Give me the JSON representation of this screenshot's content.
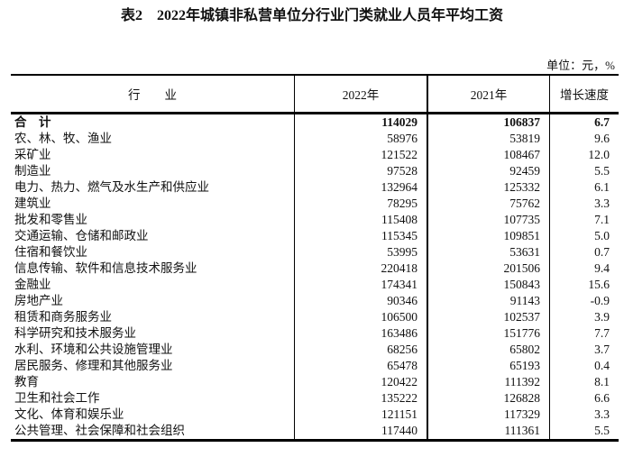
{
  "title": "表2　2022年城镇非私营单位分行业门类就业人员年平均工资",
  "unit": "单位：元，%",
  "headers": [
    "行　　业",
    "2022年",
    "2021年",
    "增长速度"
  ],
  "rows": [
    [
      "合　计",
      "114029",
      "106837",
      "6.7"
    ],
    [
      "农、林、牧、渔业",
      "58976",
      "53819",
      "9.6"
    ],
    [
      "采矿业",
      "121522",
      "108467",
      "12.0"
    ],
    [
      "制造业",
      "97528",
      "92459",
      "5.5"
    ],
    [
      "电力、热力、燃气及水生产和供应业",
      "132964",
      "125332",
      "6.1"
    ],
    [
      "建筑业",
      "78295",
      "75762",
      "3.3"
    ],
    [
      "批发和零售业",
      "115408",
      "107735",
      "7.1"
    ],
    [
      "交通运输、仓储和邮政业",
      "115345",
      "109851",
      "5.0"
    ],
    [
      "住宿和餐饮业",
      "53995",
      "53631",
      "0.7"
    ],
    [
      "信息传输、软件和信息技术服务业",
      "220418",
      "201506",
      "9.4"
    ],
    [
      "金融业",
      "174341",
      "150843",
      "15.6"
    ],
    [
      "房地产业",
      "90346",
      "91143",
      "-0.9"
    ],
    [
      "租赁和商务服务业",
      "106500",
      "102537",
      "3.9"
    ],
    [
      "科学研究和技术服务业",
      "163486",
      "151776",
      "7.7"
    ],
    [
      "水利、环境和公共设施管理业",
      "68256",
      "65802",
      "3.7"
    ],
    [
      "居民服务、修理和其他服务业",
      "65478",
      "65193",
      "0.4"
    ],
    [
      "教育",
      "120422",
      "111392",
      "8.1"
    ],
    [
      "卫生和社会工作",
      "135222",
      "126828",
      "6.6"
    ],
    [
      "文化、体育和娱乐业",
      "121151",
      "117329",
      "3.3"
    ],
    [
      "公共管理、社会保障和社会组织",
      "117440",
      "111361",
      "5.5"
    ]
  ]
}
